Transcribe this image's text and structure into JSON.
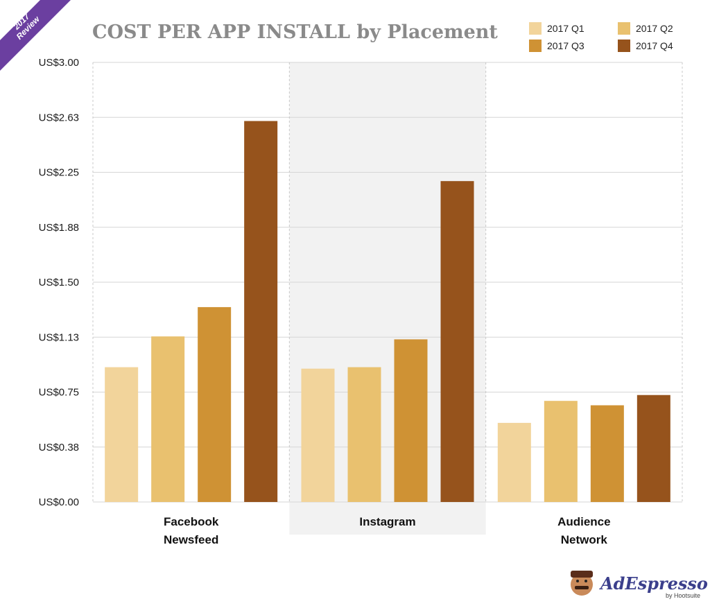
{
  "chart_data": {
    "type": "bar",
    "title": "COST PER APP INSTALL by Placement",
    "categories": [
      [
        "Facebook",
        "Newsfeed"
      ],
      [
        "Instagram"
      ],
      [
        "Audience",
        "Network"
      ]
    ],
    "series": [
      {
        "name": "2017 Q1",
        "color": "#f2d49b",
        "values": [
          0.92,
          0.91,
          0.54
        ]
      },
      {
        "name": "2017 Q2",
        "color": "#e9c16f",
        "values": [
          1.13,
          0.92,
          0.69
        ]
      },
      {
        "name": "2017 Q3",
        "color": "#cf9234",
        "values": [
          1.33,
          1.11,
          0.66
        ]
      },
      {
        "name": "2017 Q4",
        "color": "#96531c",
        "values": [
          2.6,
          2.19,
          0.73
        ]
      }
    ],
    "yticks": [
      "US$0.00",
      "US$0.38",
      "US$0.75",
      "US$1.13",
      "US$1.50",
      "US$1.88",
      "US$2.25",
      "US$2.63",
      "US$3.00"
    ],
    "ylim": [
      0,
      3.0
    ],
    "xlabel": "",
    "ylabel": "",
    "legend_position": "top-right",
    "grid": true,
    "highlighted_category": "Instagram"
  },
  "ribbon": {
    "year": "2017",
    "label": "Review"
  },
  "brand": {
    "name": "AdEspresso",
    "sub": "by Hootsuite"
  },
  "colors": {
    "grid": "#d6d6d6",
    "highlight_band": "#f2f2f2",
    "ribbon": "#6b3fa0"
  }
}
